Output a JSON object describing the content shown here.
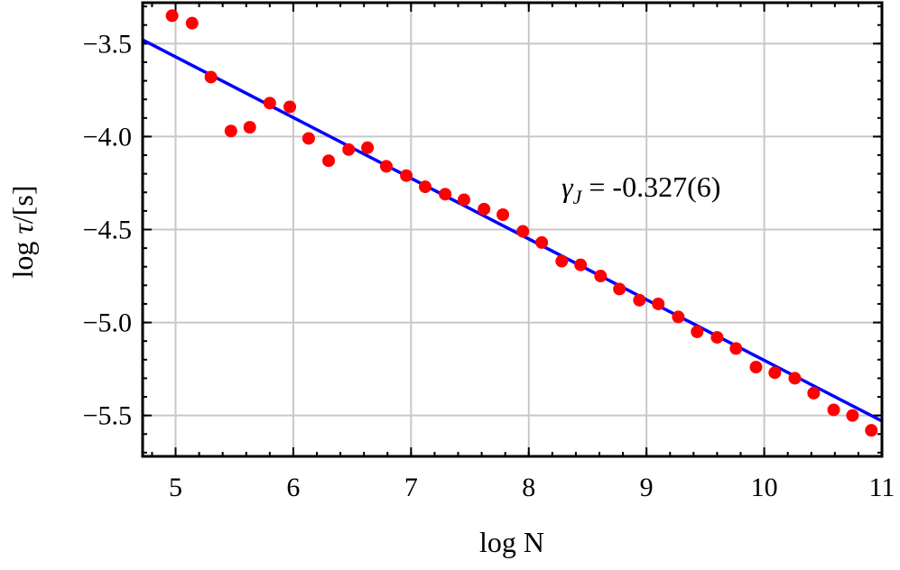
{
  "chart_data": {
    "type": "scatter",
    "title": "",
    "xlabel": "log N",
    "ylabel_prefix": "log ",
    "ylabel_symbol": "τ",
    "ylabel_suffix": "/[s]",
    "xlim": [
      4.72,
      11.0
    ],
    "ylim": [
      -5.72,
      -3.28
    ],
    "x_ticks": [
      5,
      6,
      7,
      8,
      9,
      10,
      11
    ],
    "y_ticks": [
      -3.5,
      -4.0,
      -4.5,
      -5.0,
      -5.5
    ],
    "x_tick_labels": [
      "5",
      "6",
      "7",
      "8",
      "9",
      "10",
      "11"
    ],
    "y_tick_labels": [
      "−3.5",
      "−4.0",
      "−4.5",
      "−5.0",
      "−5.5"
    ],
    "grid": true,
    "series": [
      {
        "kind": "points",
        "color": "#ff0000",
        "x": [
          4.97,
          5.14,
          5.3,
          5.47,
          5.63,
          5.8,
          5.97,
          6.13,
          6.3,
          6.47,
          6.63,
          6.79,
          6.96,
          7.12,
          7.29,
          7.45,
          7.62,
          7.78,
          7.95,
          8.11,
          8.28,
          8.44,
          8.61,
          8.77,
          8.94,
          9.1,
          9.27,
          9.43,
          9.6,
          9.76,
          9.93,
          10.09,
          10.26,
          10.42,
          10.59,
          10.75,
          10.91
        ],
        "y": [
          -3.35,
          -3.39,
          -3.68,
          -3.97,
          -3.95,
          -3.82,
          -3.84,
          -4.01,
          -4.13,
          -4.07,
          -4.06,
          -4.16,
          -4.21,
          -4.27,
          -4.31,
          -4.34,
          -4.39,
          -4.42,
          -4.51,
          -4.57,
          -4.67,
          -4.69,
          -4.75,
          -4.82,
          -4.88,
          -4.9,
          -4.97,
          -5.05,
          -5.08,
          -5.14,
          -5.24,
          -5.27,
          -5.3,
          -5.38,
          -5.47,
          -5.5,
          -5.58
        ]
      },
      {
        "kind": "fit",
        "color": "#0000ff",
        "x": [
          4.72,
          11.0
        ],
        "y": [
          -3.48,
          -5.53
        ]
      }
    ],
    "annotation": {
      "symbol": "γ",
      "subscript": "J",
      "text": " = -0.327(6)"
    }
  }
}
